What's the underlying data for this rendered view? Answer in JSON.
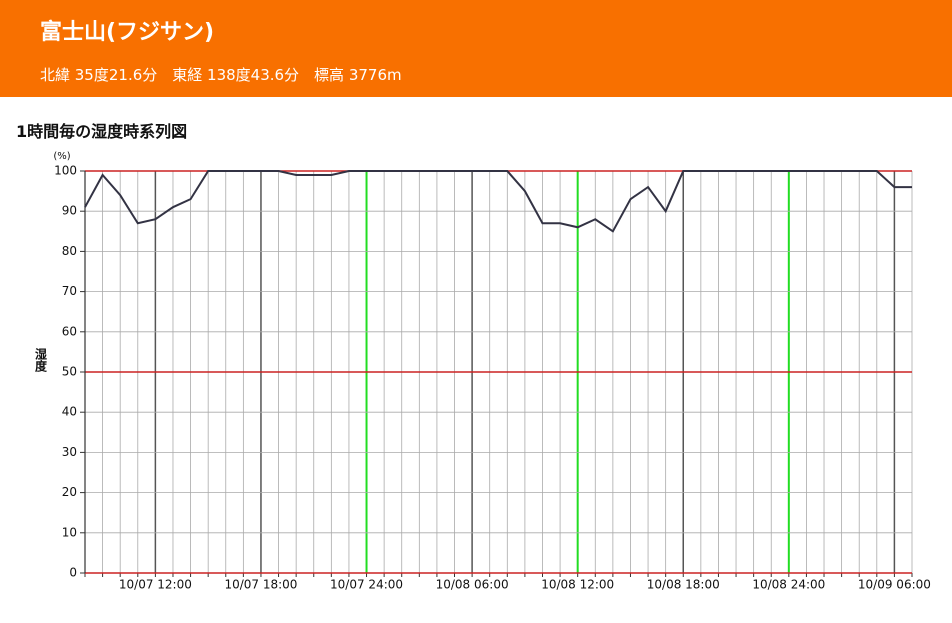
{
  "header": {
    "title": "富士山(フジサン)",
    "location": "北緯 35度21.6分　東経 138度43.6分　標高 3776m"
  },
  "section_title": "1時間毎の湿度時系列図",
  "chart_data": {
    "type": "line",
    "y_label": "湿度",
    "y_unit": "(%)",
    "categories": [
      null,
      null,
      null,
      null,
      "10/07 12:00",
      null,
      null,
      null,
      null,
      null,
      "10/07 18:00",
      null,
      null,
      null,
      null,
      null,
      "10/07 24:00",
      null,
      null,
      null,
      null,
      null,
      "10/08 06:00",
      null,
      null,
      null,
      null,
      null,
      "10/08 12:00",
      null,
      null,
      null,
      null,
      null,
      "10/08 18:00",
      null,
      null,
      null,
      null,
      null,
      "10/08 24:00",
      null,
      null,
      null,
      null,
      null,
      "10/09 06:00",
      null
    ],
    "series": [
      {
        "name": "湿度",
        "color": "#333344",
        "values": [
          91,
          99,
          94,
          87,
          88,
          91,
          93,
          100,
          100,
          100,
          100,
          100,
          99,
          99,
          99,
          100,
          100,
          100,
          100,
          100,
          100,
          100,
          100,
          100,
          100,
          95,
          87,
          87,
          86,
          88,
          85,
          93,
          96,
          90,
          100,
          100,
          100,
          100,
          100,
          100,
          100,
          100,
          100,
          100,
          100,
          100,
          96,
          96
        ]
      }
    ],
    "ylim": [
      0,
      100
    ],
    "yticks": [
      0,
      10,
      20,
      30,
      40,
      50,
      60,
      70,
      80,
      90,
      100
    ],
    "grid": true
  }
}
